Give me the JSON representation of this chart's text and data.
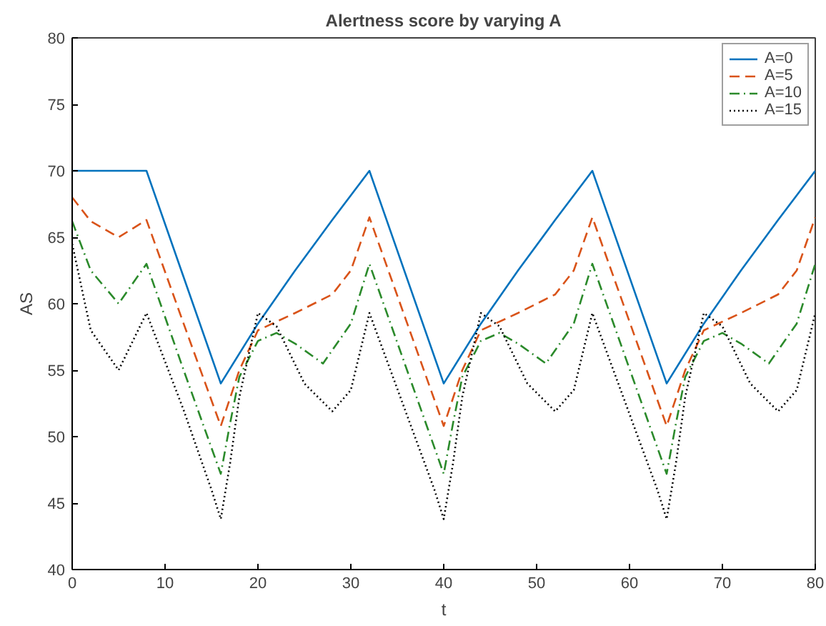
{
  "chart_data": {
    "type": "line",
    "title": "Alertness score by varying A",
    "xlabel": "t",
    "ylabel": "AS",
    "xlim": [
      0,
      80
    ],
    "ylim": [
      40,
      80
    ],
    "xticks": [
      0,
      10,
      20,
      30,
      40,
      50,
      60,
      70,
      80
    ],
    "yticks": [
      40,
      45,
      50,
      55,
      60,
      65,
      70,
      75,
      80
    ],
    "grid": false,
    "legend": "top right",
    "series": [
      {
        "name": "A=0",
        "color": "#0072bd",
        "line_style": "solid",
        "x": [
          0,
          8,
          16,
          20,
          24,
          28,
          32,
          40,
          44,
          48,
          52,
          56,
          64,
          68,
          72,
          76,
          80
        ],
        "values": [
          70,
          70,
          54,
          58.5,
          62.5,
          66.3,
          70,
          54,
          58.5,
          62.5,
          66.3,
          70,
          54,
          58.5,
          62.5,
          66.3,
          70
        ]
      },
      {
        "name": "A=5",
        "color": "#d95319",
        "line_style": "dashed",
        "x": [
          0,
          2,
          5,
          8,
          12,
          16,
          18,
          20,
          24,
          28,
          30,
          32,
          40,
          42,
          44,
          48,
          52,
          54,
          56,
          64,
          66,
          68,
          72,
          76,
          78,
          80
        ],
        "values": [
          68,
          66.2,
          65,
          66.3,
          58.5,
          50.8,
          55,
          58,
          59.3,
          60.7,
          62.5,
          66.5,
          50.8,
          55,
          58,
          59.3,
          60.7,
          62.5,
          66.5,
          50.8,
          55,
          58,
          59.3,
          60.7,
          62.5,
          66.5
        ]
      },
      {
        "name": "A=10",
        "color": "#2b8a2b",
        "line_style": "dashdot",
        "x": [
          0,
          2,
          5,
          8,
          12,
          16,
          17,
          18,
          20,
          22,
          24,
          27,
          30,
          32,
          40,
          41,
          42,
          44,
          46,
          48,
          51,
          54,
          56,
          64,
          65,
          66,
          68,
          70,
          72,
          75,
          78,
          80
        ],
        "values": [
          66.2,
          62.5,
          60,
          63,
          55,
          47.2,
          51,
          54.5,
          57.2,
          57.8,
          57,
          55.5,
          58.5,
          63,
          47.2,
          51,
          54.5,
          57.2,
          57.8,
          57,
          55.5,
          58.5,
          63,
          47.2,
          51,
          54.5,
          57.2,
          57.8,
          57,
          55.5,
          58.5,
          63
        ]
      },
      {
        "name": "A=15",
        "color": "#000000",
        "line_style": "dotted",
        "x": [
          0,
          2,
          5,
          8,
          12,
          15,
          16,
          17,
          18,
          20,
          22,
          25,
          28,
          30,
          32,
          39,
          40,
          41,
          42,
          44,
          46,
          49,
          52,
          54,
          56,
          63,
          64,
          65,
          66,
          68,
          70,
          73,
          76,
          78,
          80
        ],
        "values": [
          64.5,
          58,
          55,
          59.3,
          52,
          46,
          43.8,
          48,
          53,
          59.3,
          58.3,
          54,
          51.9,
          53.5,
          59.3,
          46,
          43.8,
          48,
          53,
          59.3,
          58.3,
          54,
          51.9,
          53.5,
          59.3,
          46,
          43.8,
          48,
          53,
          59.3,
          58.3,
          54,
          51.9,
          53.5,
          59.3
        ]
      }
    ]
  }
}
